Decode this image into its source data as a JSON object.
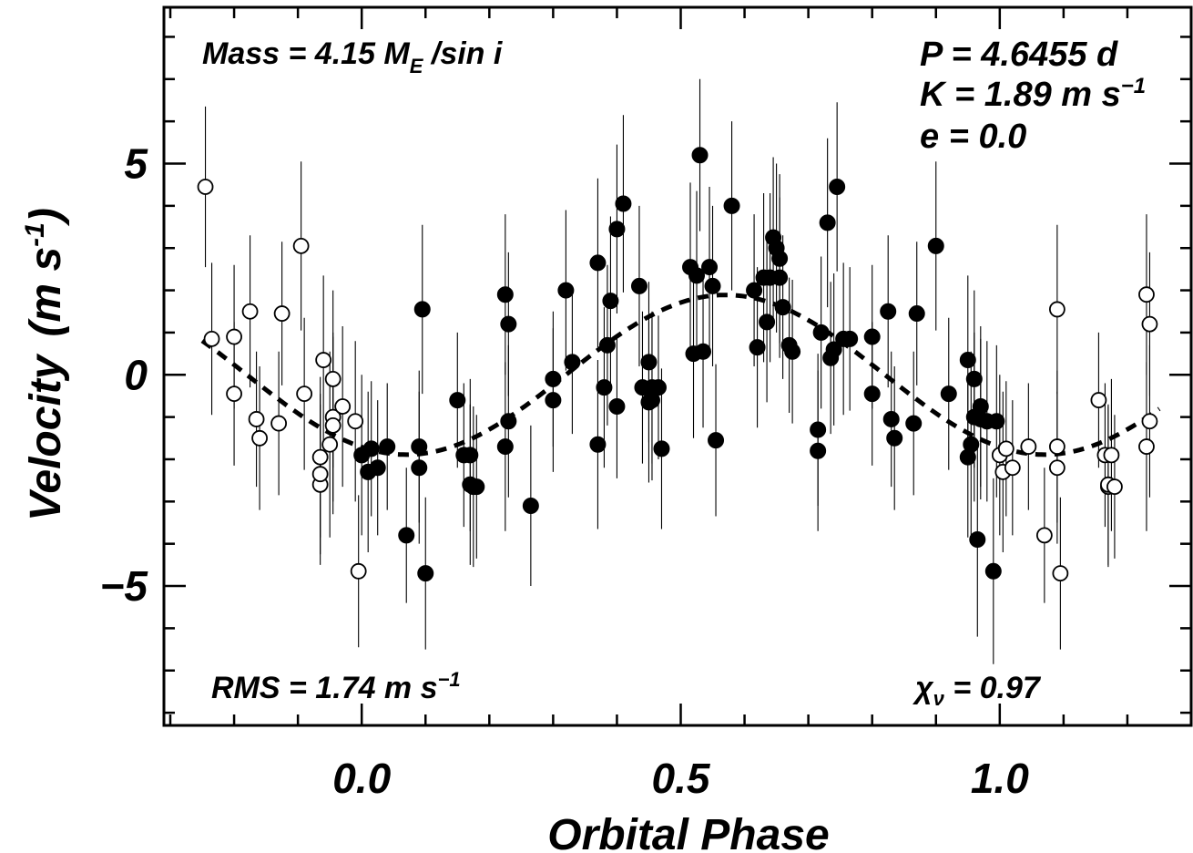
{
  "chart_data": {
    "type": "scatter",
    "title": "",
    "xlabel": "Orbital Phase",
    "ylabel": "Velocity",
    "ylabel_unit_prefix": "(m s",
    "ylabel_unit_exp": "-1",
    "ylabel_unit_suffix": ")",
    "xlim": [
      -0.31,
      1.3
    ],
    "ylim": [
      -8.3,
      8.7
    ],
    "x_ticks": [
      0.0,
      0.5,
      1.0
    ],
    "x_tick_labels": [
      "0.0",
      "0.5",
      "1.0"
    ],
    "x_minor_step": 0.1,
    "y_ticks": [
      -5,
      0,
      5
    ],
    "y_tick_labels": [
      "−5",
      "0",
      "5"
    ],
    "y_minor_step": 1,
    "grid": false,
    "annotations": {
      "mass_prefix": "Mass = 4.15 M",
      "mass_sub": "E",
      "mass_suffix": " /sin i",
      "period": "P = 4.6455 d",
      "k_prefix": "K = 1.89 m s",
      "k_exp": "−1",
      "ecc": "e = 0.0",
      "rms_prefix": "RMS = 1.74 m s",
      "rms_exp": "−1",
      "chi_symbol": "χ",
      "chi_sub": "ν",
      "chi_value": " = 0.97"
    },
    "model": {
      "style": "dashed",
      "period_phase": 1.0,
      "amplitude": 1.89,
      "phase_of_max": 0.57,
      "x_range": [
        -0.25,
        1.25
      ]
    },
    "series": [
      {
        "marker": "filled-circle",
        "x": [
          0.0,
          0.01,
          0.015,
          0.025,
          0.04,
          0.07,
          0.09,
          0.09,
          0.095,
          0.1,
          0.15,
          0.16,
          0.17,
          0.17,
          0.175,
          0.18,
          0.225,
          0.225,
          0.23,
          0.23,
          0.265,
          0.3,
          0.3,
          0.32,
          0.33,
          0.37,
          0.37,
          0.38,
          0.385,
          0.39,
          0.4,
          0.4,
          0.41,
          0.435,
          0.44,
          0.45,
          0.45,
          0.455,
          0.455,
          0.465,
          0.47,
          0.515,
          0.52,
          0.525,
          0.53,
          0.535,
          0.545,
          0.55,
          0.555,
          0.58,
          0.615,
          0.62,
          0.63,
          0.635,
          0.64,
          0.645,
          0.65,
          0.655,
          0.655,
          0.66,
          0.67,
          0.675,
          0.715,
          0.715,
          0.72,
          0.73,
          0.735,
          0.74,
          0.745,
          0.755,
          0.765,
          0.8,
          0.8,
          0.825,
          0.83,
          0.835,
          0.865,
          0.87,
          0.9,
          0.92,
          0.95,
          0.95,
          0.955,
          0.96,
          0.96,
          0.965,
          0.97,
          0.97,
          0.98,
          0.99,
          0.995
        ],
        "y": [
          -1.9,
          -2.3,
          -1.75,
          -2.2,
          -1.7,
          -3.8,
          -1.7,
          -2.2,
          1.55,
          -4.7,
          -0.6,
          -1.9,
          -2.6,
          -1.9,
          -2.65,
          -2.65,
          1.9,
          -1.7,
          -1.1,
          1.2,
          -3.1,
          -0.1,
          -0.6,
          2.0,
          0.3,
          2.65,
          -1.65,
          -0.3,
          0.7,
          1.75,
          -0.75,
          3.45,
          4.05,
          2.1,
          -0.3,
          0.3,
          -0.65,
          -0.3,
          -0.6,
          -0.3,
          -1.75,
          2.55,
          0.5,
          2.35,
          5.2,
          0.55,
          2.55,
          2.1,
          -1.55,
          4.0,
          2.0,
          0.65,
          2.3,
          1.25,
          2.3,
          3.25,
          3.0,
          2.75,
          2.3,
          1.6,
          0.7,
          0.55,
          -1.3,
          -1.8,
          1.0,
          3.6,
          0.4,
          0.6,
          4.45,
          0.85,
          0.85,
          0.9,
          -0.45,
          1.5,
          -1.05,
          -1.5,
          -1.15,
          1.45,
          3.05,
          -0.45,
          0.35,
          -1.95,
          -1.65,
          -0.1,
          -1.0,
          -3.9,
          -1.05,
          -0.75,
          -1.1,
          -4.65,
          -1.1
        ],
        "err": [
          1.9,
          1.9,
          1.6,
          1.6,
          1.5,
          1.6,
          1.8,
          1.8,
          2.0,
          1.8,
          1.6,
          1.7,
          1.9,
          1.8,
          1.9,
          1.7,
          1.9,
          2.0,
          1.8,
          1.7,
          1.9,
          1.6,
          1.7,
          1.9,
          1.7,
          2.0,
          2.0,
          1.9,
          1.9,
          2.0,
          1.7,
          2.0,
          2.1,
          1.9,
          1.8,
          1.9,
          1.9,
          1.8,
          1.9,
          1.7,
          1.9,
          2.0,
          2.0,
          2.0,
          1.8,
          1.8,
          1.9,
          1.9,
          1.8,
          2.0,
          1.8,
          1.9,
          2.0,
          1.9,
          2.0,
          1.9,
          2.0,
          2.0,
          1.9,
          1.7,
          1.6,
          1.7,
          1.8,
          1.9,
          1.8,
          2.0,
          1.8,
          1.8,
          2.0,
          1.8,
          1.7,
          1.7,
          1.7,
          1.8,
          1.6,
          1.7,
          1.7,
          1.7,
          2.0,
          1.8,
          2.0,
          1.9,
          2.2,
          2.1,
          2.0,
          2.3,
          1.9,
          1.9,
          1.9,
          2.2,
          1.8
        ]
      },
      {
        "marker": "open-circle",
        "x": [
          -0.245,
          -0.235,
          -0.2,
          -0.2,
          -0.175,
          -0.165,
          -0.16,
          -0.13,
          -0.125,
          -0.095,
          -0.09,
          -0.065,
          -0.065,
          -0.065,
          -0.06,
          -0.05,
          -0.045,
          -0.045,
          -0.045,
          -0.03,
          -0.01,
          -0.005,
          1.0,
          1.005,
          1.01,
          1.02,
          1.045,
          1.07,
          1.09,
          1.09,
          1.09,
          1.095,
          1.155,
          1.165,
          1.17,
          1.17,
          1.175,
          1.18,
          1.23,
          1.23,
          1.235,
          1.235
        ],
        "y": [
          4.45,
          0.85,
          0.9,
          -0.45,
          1.5,
          -1.05,
          -1.5,
          -1.15,
          1.45,
          3.05,
          -0.45,
          -1.95,
          -2.6,
          -2.35,
          0.35,
          -1.65,
          -0.1,
          -1.0,
          -1.2,
          -0.75,
          -1.1,
          -4.65,
          -1.9,
          -2.3,
          -1.75,
          -2.2,
          -1.7,
          -3.8,
          1.55,
          -2.2,
          -1.7,
          -4.7,
          -0.6,
          -1.9,
          -2.65,
          -2.6,
          -1.9,
          -2.65,
          1.9,
          -1.7,
          1.2,
          -1.1
        ],
        "err": [
          1.9,
          1.8,
          1.7,
          1.7,
          1.8,
          1.6,
          1.7,
          1.7,
          1.7,
          2.0,
          1.8,
          1.9,
          1.9,
          1.9,
          2.0,
          2.2,
          2.1,
          2.0,
          2.1,
          1.9,
          1.9,
          1.8,
          1.9,
          1.9,
          1.6,
          1.6,
          1.5,
          1.6,
          2.0,
          1.8,
          1.8,
          1.8,
          1.6,
          1.7,
          1.9,
          1.9,
          1.8,
          1.7,
          1.9,
          2.0,
          1.7,
          1.8
        ]
      }
    ]
  }
}
